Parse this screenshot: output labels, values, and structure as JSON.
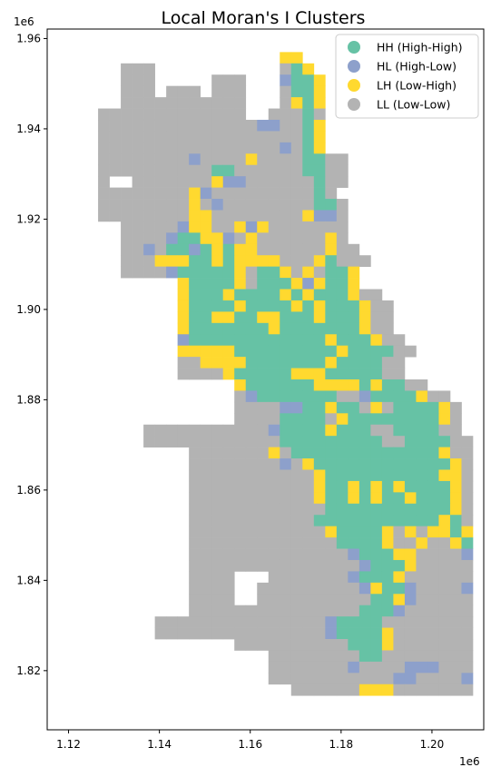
{
  "title": "Local Moran's I Clusters",
  "x_offset_label": "1e6",
  "y_offset_label": "1e6",
  "x_ticks": [
    {
      "label": "1.12",
      "value": 1.12
    },
    {
      "label": "1.14",
      "value": 1.14
    },
    {
      "label": "1.16",
      "value": 1.16
    },
    {
      "label": "1.18",
      "value": 1.18
    },
    {
      "label": "1.20",
      "value": 1.2
    }
  ],
  "y_ticks": [
    {
      "label": "1.82",
      "value": 1.82
    },
    {
      "label": "1.84",
      "value": 1.84
    },
    {
      "label": "1.86",
      "value": 1.86
    },
    {
      "label": "1.88",
      "value": 1.88
    },
    {
      "label": "1.90",
      "value": 1.9
    },
    {
      "label": "1.92",
      "value": 1.92
    },
    {
      "label": "1.94",
      "value": 1.94
    },
    {
      "label": "1.96",
      "value": 1.96
    }
  ],
  "xlim": [
    1.1153,
    1.2114
  ],
  "ylim": [
    1.8069,
    1.9621
  ],
  "legend_position": "top-right",
  "legend": [
    {
      "label": "HH (High-High)",
      "color": "#66c2a5"
    },
    {
      "label": "HL (High-Low)",
      "color": "#8da0cb"
    },
    {
      "label": "LH (Low-High)",
      "color": "#ffd92f"
    },
    {
      "label": "LL (Low-Low)",
      "color": "#b3b3b3"
    }
  ],
  "chart_data": {
    "type": "heatmap",
    "grid_origin": [
      1.119,
      1.8145
    ],
    "cell_size": 0.0025,
    "categories": [
      "HH (High-High)",
      "HL (High-Low)",
      "LH (Low-High)",
      "LL (Low-Low)"
    ],
    "colors": {
      "H": "#66c2a5",
      "B": "#8da0cb",
      "Y": "#ffd92f",
      "G": "#b3b3b3"
    },
    "rows_top_to_bottom": [
      "...................ΥΥ...............",
      ".....GGG...........GHY..............",
      ".....GGG.....GGG...BHHY.............",
      ".....GGG.GGG.GGG...GHHY.............",
      ".....GGGGGGGGGGG...GYHY.............",
      "...GGGGGGGGGGGGG..GGGHG.............",
      "...GGGGGGGGGGGGGGBBGGHY.............",
      "...GGGGGGGGGGGGGGGGGGHY.............",
      "...GGGGGGGGGGGGGGGGBGHY.............",
      "...GGGGGGGGBGGGGYGGGGHHGG...........",
      "...GGGGGGGGGGHHGGGGGGHHGG...........",
      "...G..GGGGGGGYBBGGGGGGHGG...........",
      "...GGGGGGGGYBGGGGGGGGGHG............",
      "...GGGGGGGGYGBGGGGGGGGHHG...........",
      "...GGGGGGGGYYGGGGGGGGYBBG...........",
      ".....GGGGGBYYGGYBYGGGGGGG...........",
      ".....GGGGBHHYYBGYGGGGGGYG...........",
      ".....GGBGHHBHYHYYGGGGGGYGG..........",
      ".....GGGYYYHHYHYYYYGGGYHGGG.........",
      ".....GGGGBHHHHHYGHHYGYGHHY..........",
      "..........YHHHHYGHHHYBYHHY..........",
      "..........YHHHYHHHHYHYHHHYGG........",
      "..........YHHHHYHHHHYHYHHHYGG.......",
      "..........YHHYYHHYYHHHYHHHYGG.......",
      "..........YHHHHHHHYHHHHHHHYGG.......",
      "..........BHHHHHHHHHHHHYHHHYGG......",
      "..........YYYYYHHHHHHHHHYHHHHGG.....",
      "..........GGYYYYHHHHHHHYHHHHGG......",
      "..........GGGGYHHHHHYYYHHHHHGG......",
      "...............YHHHHHHYYYYHYHHGG....",
      "...............GBHHHHHHHGGBHHHHYGG..",
      "...............GGGGBBHHYHHGYGHHHHYG.",
      "...............GGGGHHHHGYHHHHHHHHYG.",
      ".......GGGGGGGGGGGBHHHHYHHHGGHHHHGG.",
      ".......GGGGGGGGGGGGHHHHHHHHHGGHHHHGG",
      "...........GGGGGGGYGHHHHHHHHHHHHHYGG",
      "...........GGGGGGGGBGYHHHHHHHHHHHHYG",
      "...........GGGGGGGGGGGYHHHHHHHHHHYYG",
      "...........GGGGGGGGGGGYHHYHYHYHHHHYG",
      "...........GGGGGGGGGGGYHHYHYHHYHHHYGG",
      "...........GGGGGGGGGGGGHHHHHHHHHHHYGG",
      "...........GGGGGGGGGGGHHHHHHHHHHHYHGG",
      "...........GGGGGGGGGGGGYHHHHYGYGYYHYHG",
      "...........GGGGGGGGGGGGGHHHHYGGYGGYHYG",
      "...........GGGGGGGGGGGGGGBHHHYYGGGGBGG",
      "...........GGGGGGGGGGGGGGGBHHHYGGGGGGG",
      "...........GGGG...GGGGGGGBHHHYGGGGGGG",
      "...........GGGG..GGGGGGGGGBYHHBGGGGBGGG",
      "...........GGGG..GGGGGGGGGGHHYBGGGGGGGG",
      "...........GGGGGGGGGGGGGGGHHHBGGGGGGGG",
      "........GGGGGGGGGGGGGGGBHHHHGGGGGGGG",
      "........GGGGGGGGGGGGGGGBHHHHYGGGGGGG",
      "...............GGGGGGGGGGHHHYGGGGGGG",
      "..................GGGGGGGGHHGGGGGGGG",
      "..................GGGGGGGBGGGGBBBGGGG",
      "..................GGGGGGGGGGGBBGGGGBGG",
      "....................GGGGGGYYYGGGGGGG"
    ]
  }
}
